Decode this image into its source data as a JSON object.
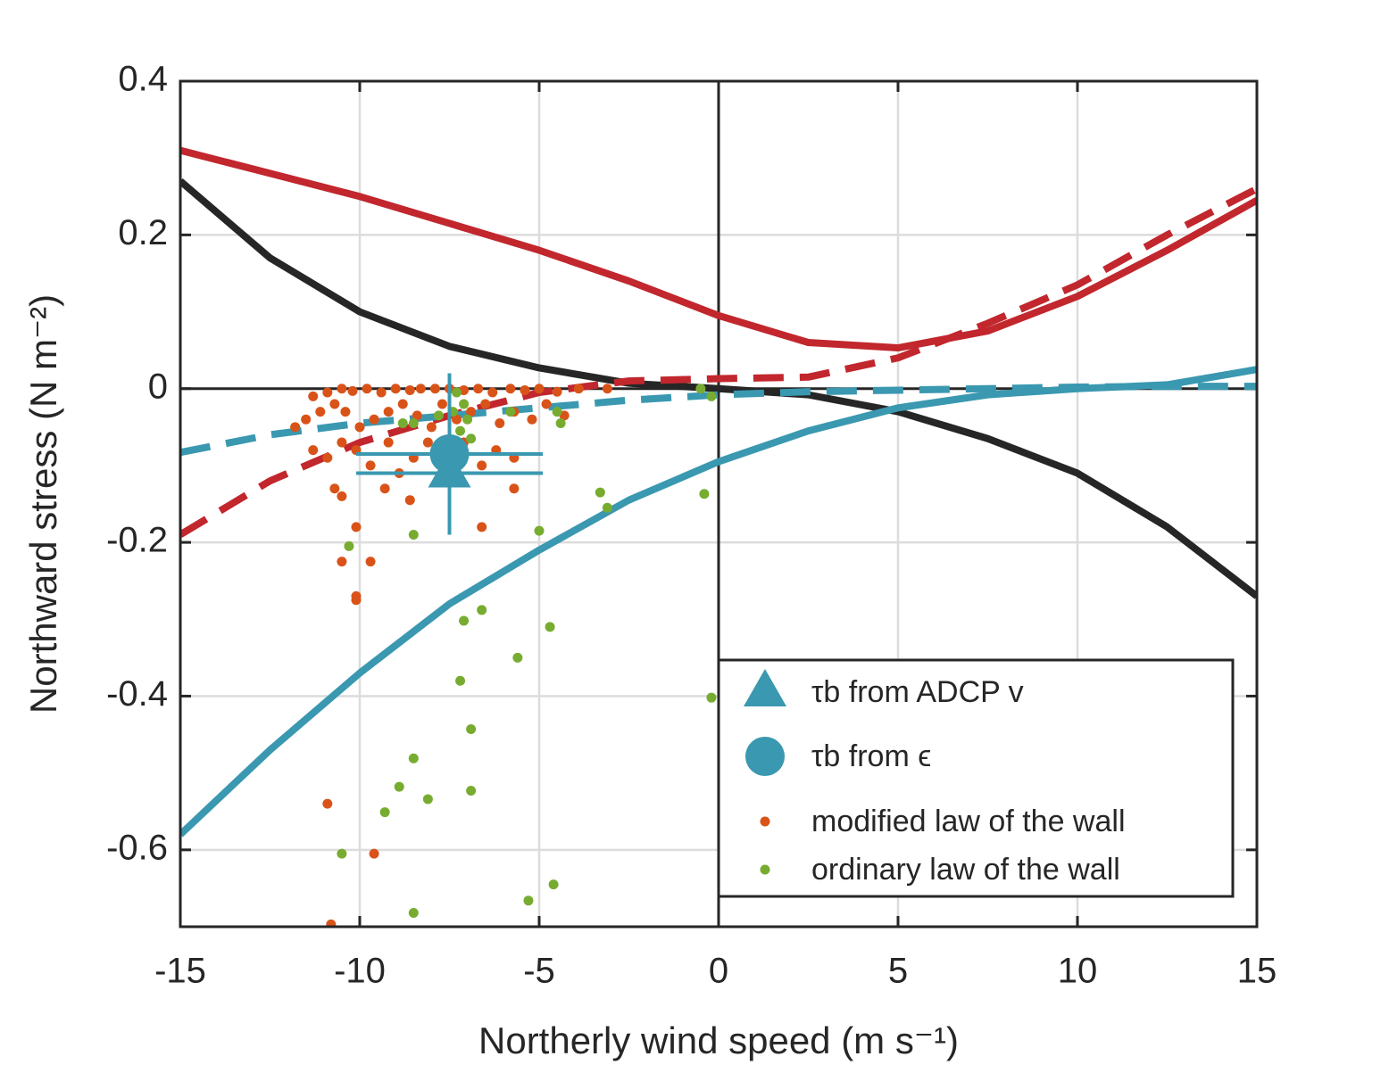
{
  "chart_data": {
    "type": "scatter",
    "xlabel": "Northerly wind speed (m s⁻¹)",
    "ylabel": "Northward stress (N m⁻²)",
    "xlim": [
      -15,
      15
    ],
    "ylim": [
      -0.7,
      0.4
    ],
    "xticks": [
      -15,
      -10,
      -5,
      0,
      5,
      10,
      15
    ],
    "yticks": [
      -0.6,
      -0.4,
      -0.2,
      0,
      0.2,
      0.4
    ],
    "grid": true,
    "legend": "lower right",
    "x": [
      -15,
      -12.5,
      -10,
      -7.5,
      -5,
      -2.5,
      0,
      2.5,
      5,
      7.5,
      10,
      12.5,
      15
    ],
    "curves": [
      {
        "color": "#c1272d",
        "style": "solid",
        "values": [
          0.31,
          0.28,
          0.25,
          0.215,
          0.18,
          0.14,
          0.095,
          0.06,
          0.053,
          0.075,
          0.12,
          0.18,
          0.245
        ]
      },
      {
        "color": "#262626",
        "style": "solid",
        "values": [
          0.27,
          0.17,
          0.1,
          0.055,
          0.027,
          0.007,
          0,
          -0.008,
          -0.03,
          -0.065,
          -0.11,
          -0.18,
          -0.27
        ]
      },
      {
        "color": "#c1272d",
        "style": "dashed",
        "values": [
          -0.19,
          -0.12,
          -0.07,
          -0.035,
          -0.005,
          0.01,
          0.013,
          0.015,
          0.04,
          0.085,
          0.135,
          0.2,
          0.26
        ]
      },
      {
        "color": "#3a98b0",
        "style": "solid",
        "values": [
          -0.58,
          -0.47,
          -0.37,
          -0.28,
          -0.21,
          -0.145,
          -0.095,
          -0.055,
          -0.025,
          -0.008,
          0,
          0.005,
          0.025
        ]
      },
      {
        "color": "#3a98b0",
        "style": "dashed",
        "values": [
          -0.083,
          -0.06,
          -0.045,
          -0.035,
          -0.025,
          -0.015,
          -0.008,
          -0.004,
          -0.002,
          0,
          0.002,
          0.003,
          0.003
        ]
      }
    ],
    "series": [
      {
        "name": "τb from ADCP v",
        "color": "#3a98b0",
        "marker": "triangle",
        "x": [
          -7.5
        ],
        "values": [
          -0.11
        ],
        "xerr": [
          2.6
        ]
      },
      {
        "name": "τb from ϵ",
        "color": "#3a98b0",
        "marker": "circle",
        "x": [
          -7.5
        ],
        "values": [
          -0.085
        ],
        "xerr": [
          2.6
        ],
        "yerr": [
          0.105
        ]
      },
      {
        "name": "modified law of the wall",
        "color": "#d95319",
        "marker": "dot",
        "x": [
          -11.3,
          -10.9,
          -10.5,
          -10.2,
          -9.8,
          -9.4,
          -9,
          -8.6,
          -8.3,
          -7.9,
          -7.5,
          -7.1,
          -6.7,
          -6.3,
          -5.8,
          -5.4,
          -5,
          -4.5,
          -3.9,
          -3.1,
          -11.8,
          -11.5,
          -11.1,
          -10.7,
          -10.4,
          -10,
          -9.6,
          -9.2,
          -8.8,
          -8.4,
          -8,
          -7.7,
          -7.3,
          -6.9,
          -6.5,
          -6.1,
          -5.7,
          -5.2,
          -4.8,
          -4.3,
          -11.3,
          -10.9,
          -10.5,
          -10.1,
          -9.7,
          -9.2,
          -8.9,
          -8.5,
          -8.1,
          -7.6,
          -7.1,
          -6.6,
          -6.2,
          -5.7,
          -10.7,
          -10.5,
          -10.1,
          -9.3,
          -8.6,
          -6.6,
          -5.7,
          -10.5,
          -9.7,
          -10.1,
          -10.1,
          -10.9,
          -9.6,
          -10.8
        ],
        "values": [
          -0.01,
          -0.005,
          0,
          -0.003,
          0,
          -0.005,
          0,
          -0.002,
          0,
          0,
          0,
          -0.002,
          0,
          -0.005,
          0,
          -0.002,
          0,
          -0.004,
          0,
          0,
          -0.05,
          -0.04,
          -0.03,
          -0.02,
          -0.03,
          -0.05,
          -0.04,
          -0.03,
          -0.02,
          -0.035,
          -0.05,
          -0.02,
          -0.04,
          -0.03,
          -0.02,
          -0.045,
          -0.03,
          -0.04,
          -0.02,
          -0.035,
          -0.08,
          -0.09,
          -0.07,
          -0.08,
          -0.1,
          -0.07,
          -0.11,
          -0.09,
          -0.07,
          -0.085,
          -0.07,
          -0.1,
          -0.08,
          -0.09,
          -0.13,
          -0.14,
          -0.18,
          -0.13,
          -0.145,
          -0.18,
          -0.13,
          -0.225,
          -0.225,
          -0.27,
          -0.275,
          -0.54,
          -0.605,
          -0.697
        ]
      },
      {
        "name": "ordinary law of the wall",
        "color": "#77ac30",
        "marker": "dot",
        "x": [
          -7.3,
          -7.1,
          -7.4,
          -7.8,
          -7,
          -8.5,
          -7.2,
          -6.9,
          -8.8,
          -5.8,
          -4.5,
          -4.4,
          -0.5,
          -0.2,
          -3.3,
          -3.1,
          -0.4,
          -5,
          -8.5,
          -10.3,
          -6.6,
          -7.1,
          -4.7,
          -5.6,
          -7.2,
          -0.2,
          -6.9,
          -8.5,
          -8.9,
          -6.9,
          -8.1,
          -9.3,
          -10.5,
          -4.6,
          -5.3,
          -8.5
        ],
        "values": [
          -0.005,
          -0.02,
          -0.03,
          -0.035,
          -0.04,
          -0.045,
          -0.055,
          -0.065,
          -0.045,
          -0.03,
          -0.03,
          -0.045,
          0,
          -0.01,
          -0.135,
          -0.155,
          -0.137,
          -0.185,
          -0.19,
          -0.205,
          -0.288,
          -0.302,
          -0.31,
          -0.35,
          -0.38,
          -0.402,
          -0.443,
          -0.481,
          -0.518,
          -0.523,
          -0.534,
          -0.551,
          -0.605,
          -0.645,
          -0.666,
          -0.682
        ]
      }
    ]
  }
}
